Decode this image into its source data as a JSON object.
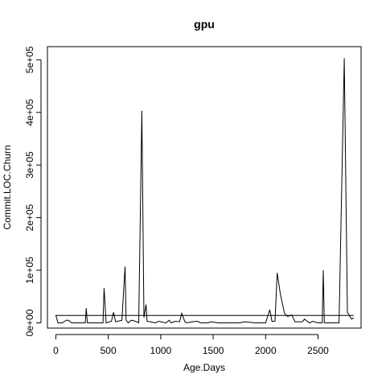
{
  "chart_data": {
    "type": "line",
    "title": "gpu",
    "xlabel": "Age.Days",
    "ylabel": "Commit.LOC.Churn",
    "xlim": [
      -80,
      2910
    ],
    "ylim": [
      -10000,
      525000
    ],
    "x_ticks": [
      0,
      500,
      1000,
      1500,
      2000,
      2500
    ],
    "x_tick_labels": [
      "0",
      "500",
      "1000",
      "1500",
      "2000",
      "2500"
    ],
    "y_ticks": [
      0,
      100000,
      200000,
      300000,
      400000,
      500000
    ],
    "y_tick_labels": [
      "0e+00",
      "1e+05",
      "2e+05",
      "3e+05",
      "4e+05",
      "5e+05"
    ],
    "grid": false,
    "horizontal_reference_y": 14000,
    "series": [
      {
        "x": [
          0,
          20,
          60,
          100,
          120,
          150,
          200,
          280,
          290,
          300,
          350,
          420,
          450,
          460,
          480,
          530,
          550,
          570,
          630,
          660,
          670,
          690,
          720,
          760,
          790,
          820,
          840,
          860,
          870,
          900,
          950,
          980,
          1000,
          1050,
          1080,
          1100,
          1140,
          1180,
          1200,
          1230,
          1250,
          1300,
          1350,
          1380,
          1400,
          1450,
          1480,
          1550,
          1650,
          1750,
          1800,
          1900,
          1950,
          2000,
          2040,
          2060,
          2090,
          2110,
          2140,
          2180,
          2210,
          2250,
          2280,
          2330,
          2350,
          2370,
          2420,
          2450,
          2500,
          2520,
          2540,
          2550,
          2560,
          2600,
          2700,
          2750,
          2780,
          2820,
          2840
        ],
        "y": [
          15000,
          0,
          0,
          5000,
          5000,
          0,
          0,
          0,
          28000,
          0,
          0,
          0,
          0,
          66000,
          0,
          3000,
          20000,
          2000,
          5000,
          107000,
          5000,
          0,
          5000,
          3000,
          0,
          403000,
          10000,
          35000,
          3000,
          2000,
          0,
          3000,
          2000,
          0,
          5000,
          0,
          3000,
          2000,
          18000,
          2000,
          0,
          2000,
          3000,
          0,
          0,
          0,
          2000,
          0,
          0,
          0,
          2000,
          0,
          0,
          0,
          25000,
          3000,
          3000,
          95000,
          55000,
          18000,
          12000,
          15000,
          2000,
          2000,
          2000,
          7000,
          0,
          3000,
          0,
          0,
          0,
          100000,
          0,
          0,
          0,
          503000,
          20000,
          7000,
          10000
        ]
      }
    ]
  }
}
